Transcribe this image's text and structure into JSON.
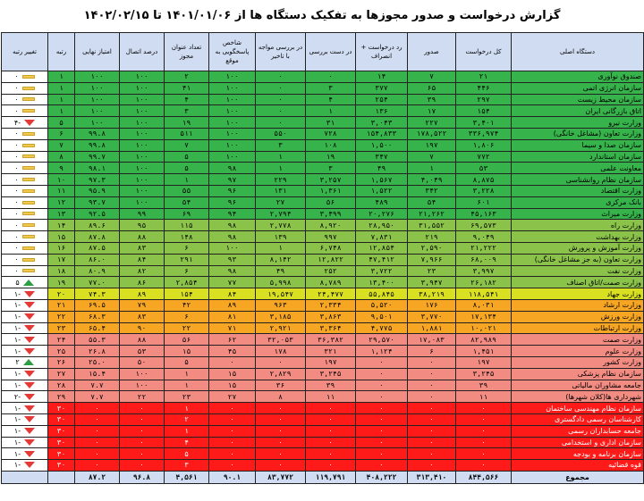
{
  "title": "گزارش درخواست و صدور مجوزها به تفکیک دستگاه ها از ۱۴۰۱/۰۱/۰۶ تا ۱۴۰۲/۰۲/۱۵",
  "headers": [
    "دستگاه اصلی",
    "کل درخواست",
    "صدور",
    "رد درخواست + انصراف",
    "در دست بررسی",
    "در بررسی مواجه با تاخیر",
    "شاخص پاسخگویی به موقع",
    "تعداد عنوان مجوز",
    "درصد اتصال",
    "امتیاز نهایی",
    "رتبه",
    "تغییر رتبه"
  ],
  "colors": {
    "green": "#36b34a",
    "lightgreen": "#8bc34a",
    "yellow": "#d9e021",
    "orange": "#f6a623",
    "pink": "#f28b82",
    "red": "#ff1a1a",
    "header": "#cfdcf2"
  },
  "rows": [
    {
      "band": "g",
      "cells": [
        "صندوق نوآوری",
        "۲۱",
        "۷",
        "۱۴",
        "۰",
        "۰",
        "۱۰۰",
        "۲",
        "۱۰۰",
        "۱۰۰",
        "۱",
        "۰"
      ],
      "marker": "flat"
    },
    {
      "band": "g",
      "cells": [
        "سازمان انرژی اتمی",
        "۴۴۶",
        "۶۵",
        "۳۷۷",
        "۳",
        "۰",
        "۱۰۰",
        "۴۱",
        "۱۰۰",
        "۱۰۰",
        "۱",
        "۰"
      ],
      "marker": "flat"
    },
    {
      "band": "g",
      "cells": [
        "سازمان محیط زیست",
        "۲۹۷",
        "۳۹",
        "۲۵۴",
        "۴",
        "۰",
        "۱۰۰",
        "۴",
        "۱۰۰",
        "۱۰۰",
        "۱",
        "۰"
      ],
      "marker": "flat"
    },
    {
      "band": "g",
      "cells": [
        "اتاق بازرگانی ایران",
        "۱۵۴",
        "۱۷",
        "۱۳۶",
        "۱",
        "۰",
        "۱۰۰",
        "۳",
        "۱۰۰",
        "۱۰۰",
        "۱",
        "۰"
      ],
      "marker": "flat"
    },
    {
      "band": "g",
      "cells": [
        "وزارت نیرو",
        "۳,۴۰۱",
        "۲۲۷",
        "۳,۰۴۳",
        "۳۱",
        "۰",
        "۱۰۰",
        "۱۹",
        "۱۰۰",
        "۱۰۰",
        "۵",
        "-۴"
      ],
      "marker": "down"
    },
    {
      "band": "g",
      "cells": [
        "وزارت تعاون (مشاغل خانگی)",
        "۳۳۶,۹۷۴",
        "۱۷۸,۵۲۲",
        "۱۵۴,۸۳۳",
        "۷۲۸",
        "۵۵۰",
        "۱۰۰",
        "۵۱۱",
        "۱۰۰",
        "۹۹.۸",
        "۶",
        "۰"
      ],
      "marker": "flat"
    },
    {
      "band": "g",
      "cells": [
        "سازمان صدا و سیما",
        "۱,۸۰۶",
        "۱۹۷",
        "۱,۵۰۰",
        "۱۰۸",
        "۳",
        "۱۰۰",
        "۷",
        "۱۰۰",
        "۹۹.۸",
        "۷",
        "۰"
      ],
      "marker": "flat"
    },
    {
      "band": "g",
      "cells": [
        "سازمان استاندارد",
        "۷۷۲",
        "۷",
        "۳۴۷",
        "۱۹",
        "۱",
        "۱۰۰",
        "۵",
        "۱۰۰",
        "۹۹.۷",
        "۸",
        "۰"
      ],
      "marker": "flat"
    },
    {
      "band": "g",
      "cells": [
        "معاونت علمی",
        "۵۳",
        "۱",
        "۴۹",
        "۳",
        "۱",
        "۹۸",
        "۵",
        "۱۰۰",
        "۹۸.۱",
        "۹",
        "۰"
      ],
      "marker": "flat"
    },
    {
      "band": "g",
      "cells": [
        "سازمان نظام روانشناسی",
        "۸,۸۷۵",
        "۴,۰۴۹",
        "۱,۵۶۷",
        "۳,۲۵۷",
        "۲۲۹",
        "۹۷",
        "۱",
        "۱۰۰",
        "۹۷.۳",
        "۱۰",
        "۰"
      ],
      "marker": "flat"
    },
    {
      "band": "g",
      "cells": [
        "وزارت اقتصاد",
        "۳,۲۲۸",
        "۳۴۲",
        "۱,۵۲۲",
        "۱,۳۶۱",
        "۱۳۱",
        "۹۶",
        "۵۵",
        "۱۰۰",
        "۹۵.۹",
        "۱۱",
        "۰"
      ],
      "marker": "flat"
    },
    {
      "band": "g",
      "cells": [
        "بانک مرکزی",
        "۶۰۱",
        "۵۴",
        "۴۸۹",
        "۵۶",
        "۲۷",
        "۹۶",
        "۵۴",
        "۱۰۰",
        "۹۳.۷",
        "۱۲",
        "۰"
      ],
      "marker": "flat"
    },
    {
      "band": "g",
      "cells": [
        "وزارت میراث",
        "۴۵,۱۶۳",
        "۲۱,۲۶۲",
        "۲۰,۲۷۶",
        "۳,۴۹۹",
        "۲,۷۹۴",
        "۹۴",
        "۶۹",
        "۹۹",
        "۹۲.۵",
        "۱۳",
        "۰"
      ],
      "marker": "flat"
    },
    {
      "band": "lg",
      "cells": [
        "وزارت راه",
        "۶۹,۵۷۳",
        "۳۱,۵۵۲",
        "۲۸,۹۵۰",
        "۸,۹۲۰",
        "۲,۷۷۸",
        "۹۸",
        "۱۱۵",
        "۹۵",
        "۸۹.۶",
        "۱۴",
        "۰"
      ],
      "marker": "flat"
    },
    {
      "band": "lg",
      "cells": [
        "وزارت بهداشت",
        "۹,۰۴۹",
        "۲۱۹",
        "۷,۸۳۱",
        "۹۹۷",
        "۱۳۹",
        "۹۸",
        "۱۴۸",
        "۸۸",
        "۸۷.۸",
        "۱۵",
        "۰"
      ],
      "marker": "flat"
    },
    {
      "band": "lg",
      "cells": [
        "وزارت آموزش و پرورش",
        "۲۱,۲۲۲",
        "۲,۵۹۰",
        "۱۲,۸۵۴",
        "۶,۷۴۸",
        "۱",
        "۱۰۰",
        "۶",
        "۸۳",
        "۸۷.۵",
        "۱۶",
        "۰"
      ],
      "marker": "flat"
    },
    {
      "band": "lg",
      "cells": [
        "وزارت تعاون (به جز مشاغل خانگی)",
        "۶۸,۰۰۹",
        "۷,۹۶۶",
        "۴۷,۴۱۲",
        "۱۲,۸۲۲",
        "۸,۱۴۲",
        "۹۳",
        "۲۹۱",
        "۸۴",
        "۸۶.۰",
        "۱۷",
        "۰"
      ],
      "marker": "flat"
    },
    {
      "band": "lg",
      "cells": [
        "وزارت نفت",
        "۳,۹۹۷",
        "۲۳",
        "۳,۷۲۲",
        "۲۵۲",
        "۴۹",
        "۹۸",
        "۶",
        "۸۲",
        "۸۰.۹",
        "۱۸",
        "۰"
      ],
      "marker": "flat"
    },
    {
      "band": "lg",
      "cells": [
        "وزارت صمت/اتاق اصناف",
        "۲۶,۱۸۲",
        "۳,۹۴۷",
        "۱۳,۴۰۰",
        "۸,۷۸۹",
        "۵,۹۹۸",
        "۷۷",
        "۲,۸۵۴",
        "۸۶",
        "۷۷.۰",
        "۱۹",
        "۵"
      ],
      "marker": "up"
    },
    {
      "band": "y",
      "cells": [
        "وزارت جهاد",
        "۱۱۸,۵۴۱",
        "۳۸,۲۱۹",
        "۵۵,۸۴۵",
        "۲۴,۴۷۷",
        "۱۹,۵۴۷",
        "۸۴",
        "۱۵۴",
        "۸۹",
        "۷۴.۳",
        "۲۰",
        "-۱"
      ],
      "marker": "down"
    },
    {
      "band": "o",
      "cells": [
        "وزارت ارشاد",
        "۸,۰۳۱",
        "۱۷۶",
        "۵,۵۲۰",
        "۲,۳۳۴",
        "۹۶۳",
        "۸۹",
        "۴۲",
        "۷۹",
        "۶۹.۵",
        "۲۱",
        "-۱"
      ],
      "marker": "down"
    },
    {
      "band": "o",
      "cells": [
        "وزارت ورزش",
        "۱۷,۱۳۴",
        "۳,۷۷۰",
        "۹,۵۰۱",
        "۳,۸۶۳",
        "۳,۱۸۵",
        "۸۱",
        "۶",
        "۸۳",
        "۶۸.۳",
        "۲۲",
        "-۱"
      ],
      "marker": "down"
    },
    {
      "band": "o",
      "cells": [
        "وزارت ارتباطات",
        "۱۰,۰۲۱",
        "۱,۸۸۱",
        "۴,۷۷۵",
        "۳,۳۶۴",
        "۲,۹۲۱",
        "۷۱",
        "۲۲",
        "۹۰",
        "۶۵.۴",
        "۲۳",
        "-۱"
      ],
      "marker": "down"
    },
    {
      "band": "p",
      "cells": [
        "وزارت صمت",
        "۸۲,۹۸۹",
        "۱۷,۰۸۳",
        "۲۹,۵۷۰",
        "۳۶,۳۸۲",
        "۳۲,۰۵۳",
        "۶۲",
        "۵۶",
        "۸۸",
        "۵۵.۳",
        "۲۴",
        "-۱"
      ],
      "marker": "down"
    },
    {
      "band": "p",
      "cells": [
        "وزارت علوم",
        "۱,۴۵۱",
        "۶",
        "۱,۱۲۴",
        "۳۲۱",
        "۱۷۸",
        "۴۵",
        "۱۵",
        "۵۳",
        "۲۶.۸",
        "۲۵",
        "-۱"
      ],
      "marker": "down"
    },
    {
      "band": "p",
      "cells": [
        "وزارت کشور",
        "۱۹۷",
        "۰",
        "۰",
        "۱۹۷",
        "۰",
        "۰",
        "۵",
        "۵۰",
        "۲۵.۰",
        "۲۶",
        "۲"
      ],
      "marker": "up"
    },
    {
      "band": "p",
      "cells": [
        "سازمان نظام پزشکی",
        "۳,۲۴۵",
        "۰",
        "۰",
        "۳,۲۴۵",
        "۲,۸۲۹",
        "۱۵",
        "۱",
        "۱۰۰",
        "۱۵.۴",
        "۲۷",
        "-۱"
      ],
      "marker": "down"
    },
    {
      "band": "p",
      "cells": [
        "جامعه مشاوران مالیاتی",
        "۳۹",
        "۰",
        "۰",
        "۳۹",
        "۳۶",
        "۱۵",
        "۱",
        "۱۰۰",
        "۷.۷",
        "۲۸",
        "-۱"
      ],
      "marker": "down"
    },
    {
      "band": "p",
      "cells": [
        "شهرداری ها(کلان شهرها)",
        "۱۱",
        "۰",
        "۰",
        "۱۱",
        "۸",
        "۲۷",
        "۲۳",
        "۲۲",
        "۷.۷",
        "۲۹",
        "-۲"
      ],
      "marker": "down"
    },
    {
      "band": "r",
      "cells": [
        "سازمان نظام مهندسی ساختمان",
        "۰",
        "۰",
        "۰",
        "۰",
        "۰",
        "۰",
        "۱",
        "۰",
        "۰",
        "۳۰",
        "-۱"
      ],
      "marker": "down"
    },
    {
      "band": "r",
      "cells": [
        "کارشناسان رسمی دادگستری",
        "۰",
        "۰",
        "۰",
        "۰",
        "۰",
        "۰",
        "۲",
        "۰",
        "۰",
        "۳۰",
        "-۱"
      ],
      "marker": "down"
    },
    {
      "band": "r",
      "cells": [
        "جامعه حسابداران رسمی",
        "۰",
        "۰",
        "۰",
        "۰",
        "۰",
        "۰",
        "۱",
        "۰",
        "۰",
        "۳۰",
        "-۱"
      ],
      "marker": "down"
    },
    {
      "band": "r",
      "cells": [
        "سازمان اداری و استخدامی",
        "۰",
        "۰",
        "۰",
        "۰",
        "۰",
        "۰",
        "۴",
        "۰",
        "۰",
        "۳۰",
        "-۱"
      ],
      "marker": "down"
    },
    {
      "band": "r",
      "cells": [
        "سازمان برنامه و بودجه",
        "۰",
        "۰",
        "۰",
        "۰",
        "۰",
        "۰",
        "۵",
        "۰",
        "۰",
        "۳۰",
        "-۱"
      ],
      "marker": "down"
    },
    {
      "band": "r",
      "cells": [
        "قوه قضائیه",
        "۰",
        "۰",
        "۰",
        "۰",
        "۰",
        "۰",
        "۳",
        "۰",
        "۰",
        "۳۰",
        "-۱"
      ],
      "marker": "down"
    }
  ],
  "total": [
    "مجموع",
    "۸۴۴,۵۶۶",
    "۳۱۳,۴۱۰",
    "۴۰۸,۲۲۲",
    "۱۱۹,۷۹۱",
    "۸۳,۷۷۲",
    "۹۰.۱",
    "۴,۵۶۱",
    "۹۶.۸",
    "۸۷.۲",
    "",
    ""
  ]
}
